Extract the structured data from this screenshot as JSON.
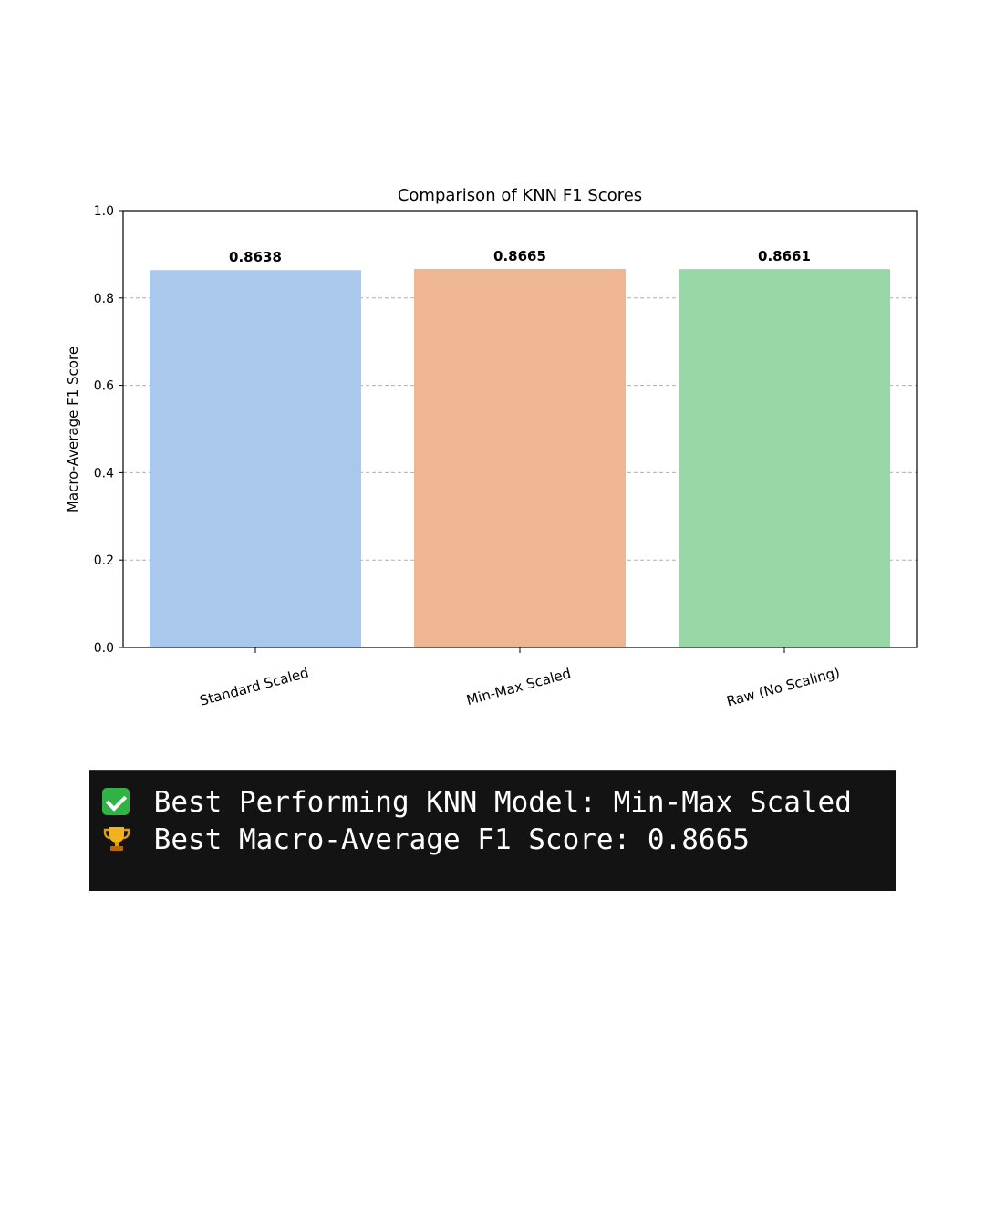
{
  "chart_data": {
    "type": "bar",
    "title": "Comparison of KNN F1 Scores",
    "xlabel": "",
    "ylabel": "Macro-Average F1 Score",
    "categories": [
      "Standard Scaled",
      "Min-Max Scaled",
      "Raw (No Scaling)"
    ],
    "values": [
      0.8638,
      0.8665,
      0.8661
    ],
    "data_labels": [
      "0.8638",
      "0.8665",
      "0.8661"
    ],
    "colors": [
      "#a9c8eb",
      "#efb693",
      "#97d7a6"
    ],
    "ylim": [
      0,
      1.0
    ],
    "yticks": [
      "0.0",
      "0.2",
      "0.4",
      "0.6",
      "0.8",
      "1.0"
    ],
    "grid": "horizontal dashed"
  },
  "terminal": {
    "line1_icon": "check-mark-icon",
    "line1_text": "Best Performing KNN Model: Min-Max Scaled",
    "line2_icon": "trophy-icon",
    "line2_text": "Best Macro-Average F1 Score: 0.8665"
  }
}
